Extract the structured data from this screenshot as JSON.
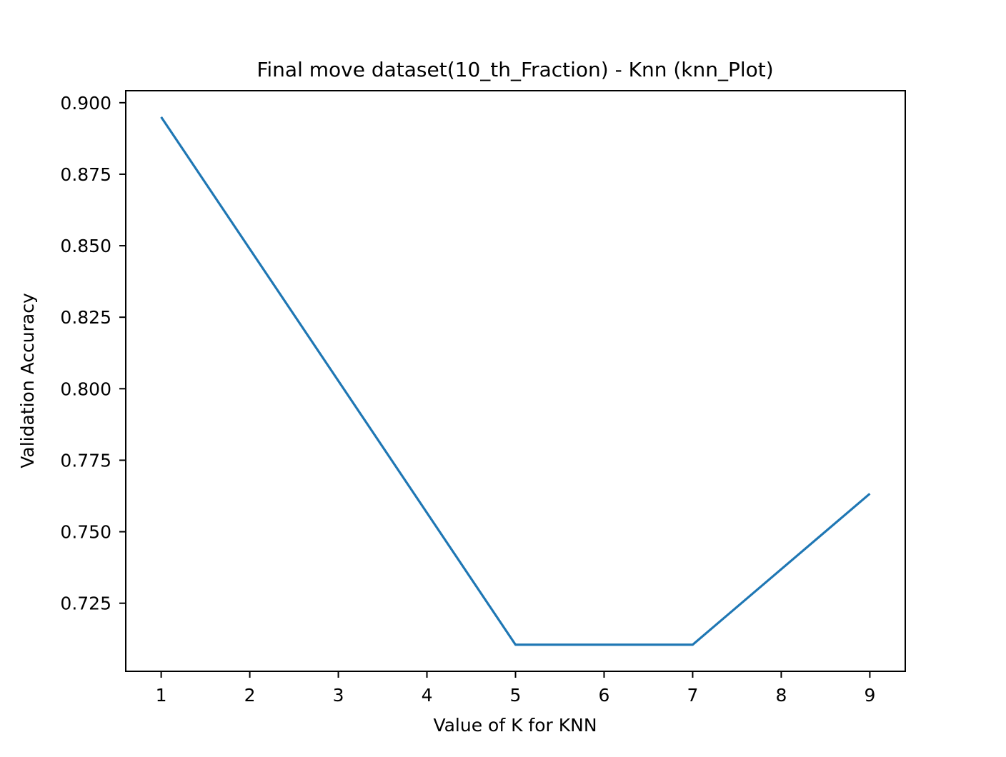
{
  "chart_data": {
    "type": "line",
    "title": "Final move dataset(10_th_Fraction) - Knn (knn_Plot)",
    "xlabel": "Value of K for KNN",
    "ylabel": "Validation Accuracy",
    "x": [
      1,
      5,
      7,
      9
    ],
    "series": [
      {
        "values": [
          0.895,
          0.7105,
          0.7105,
          0.7633
        ],
        "color": "#1f77b4"
      }
    ],
    "xticks": [
      1,
      2,
      3,
      4,
      5,
      6,
      7,
      8,
      9
    ],
    "yticks": [
      "0.900",
      "0.875",
      "0.850",
      "0.825",
      "0.800",
      "0.775",
      "0.750",
      "0.725"
    ],
    "xlim": [
      0.6,
      9.4
    ],
    "ylim": [
      0.7012,
      0.9042
    ],
    "grid": false,
    "legend": false
  }
}
